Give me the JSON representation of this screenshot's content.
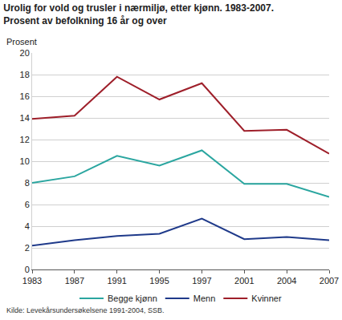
{
  "chart_data": {
    "type": "line",
    "title": "Urolig for vold og trusler i nærmiljø, etter kjønn. 1983-2007.",
    "subtitle": "Prosent av befolkning 16 år og over",
    "y_label": "Prosent",
    "source": "Kilde: Levekårsundersøkelsene 1991-2004, SSB.",
    "categories": [
      "1983",
      "1987",
      "1991",
      "1995",
      "1997",
      "2001",
      "2004",
      "2007"
    ],
    "series": [
      {
        "name": "Begge kjønn",
        "color": "#2ba6a0",
        "values": [
          8.0,
          8.6,
          10.5,
          9.6,
          11.0,
          7.9,
          7.9,
          6.7
        ]
      },
      {
        "name": "Menn",
        "color": "#1f3a8a",
        "values": [
          2.2,
          2.7,
          3.1,
          3.3,
          4.7,
          2.8,
          3.0,
          2.7
        ]
      },
      {
        "name": "Kvinner",
        "color": "#9e1f2a",
        "values": [
          13.9,
          14.2,
          17.8,
          15.7,
          17.2,
          12.8,
          12.9,
          10.7
        ]
      }
    ],
    "ylim": [
      0,
      20
    ],
    "yticks": [
      0,
      2,
      4,
      6,
      8,
      10,
      12,
      14,
      16,
      18,
      20
    ],
    "grid": true,
    "legend": "bottom"
  }
}
